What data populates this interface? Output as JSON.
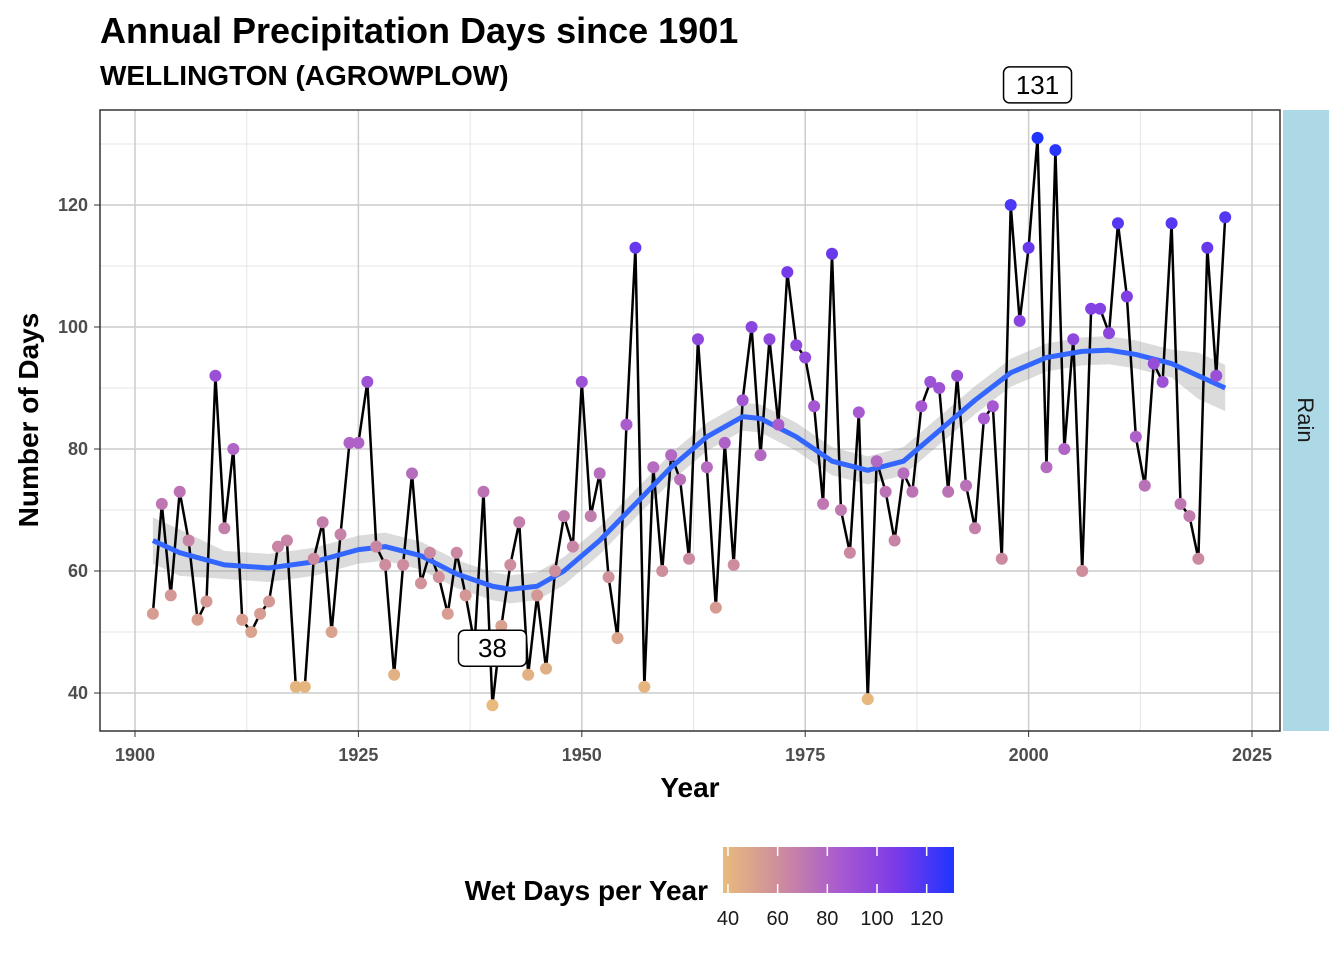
{
  "chart_data": {
    "type": "scatter",
    "title": "Annual Precipitation Days since 1901",
    "subtitle": "WELLINGTON (AGROWPLOW)",
    "xlabel": "Year",
    "ylabel": "Number of Days",
    "xlim": [
      1898,
      2028
    ],
    "ylim": [
      33.5,
      135
    ],
    "xticks": [
      1900,
      1925,
      1950,
      1975,
      2000,
      2025
    ],
    "yticks": [
      40,
      60,
      80,
      100,
      120
    ],
    "facet_label": "Rain",
    "grid": true,
    "legend": {
      "title": "Wet Days per Year",
      "position": "bottom",
      "ticks": [
        40,
        60,
        80,
        100,
        120
      ],
      "range": [
        38,
        131
      ],
      "colors": [
        "#e8bb7c",
        "#cd8c9e",
        "#a95bce",
        "#7b3ae8",
        "#1f35ff"
      ]
    },
    "annotations": [
      {
        "year": 1940,
        "label": "38"
      },
      {
        "year": 2001,
        "label": "131"
      }
    ],
    "x": [
      1902,
      1903,
      1904,
      1905,
      1906,
      1907,
      1908,
      1909,
      1910,
      1911,
      1912,
      1913,
      1914,
      1915,
      1916,
      1917,
      1918,
      1919,
      1920,
      1921,
      1922,
      1923,
      1924,
      1925,
      1926,
      1927,
      1928,
      1929,
      1930,
      1931,
      1932,
      1933,
      1934,
      1935,
      1936,
      1937,
      1938,
      1939,
      1940,
      1941,
      1942,
      1943,
      1944,
      1945,
      1946,
      1947,
      1948,
      1949,
      1950,
      1951,
      1952,
      1953,
      1954,
      1955,
      1956,
      1957,
      1958,
      1959,
      1960,
      1961,
      1962,
      1963,
      1964,
      1965,
      1966,
      1967,
      1968,
      1969,
      1970,
      1971,
      1972,
      1973,
      1974,
      1975,
      1976,
      1977,
      1978,
      1979,
      1980,
      1981,
      1982,
      1983,
      1984,
      1985,
      1986,
      1987,
      1988,
      1989,
      1990,
      1991,
      1992,
      1993,
      1994,
      1995,
      1996,
      1997,
      1998,
      1999,
      2000,
      2001,
      2002,
      2003,
      2004,
      2005,
      2006,
      2007,
      2008,
      2009,
      2010,
      2011,
      2012,
      2013,
      2014,
      2015,
      2016,
      2017,
      2018,
      2019,
      2020,
      2021,
      2022
    ],
    "values": [
      53,
      71,
      56,
      73,
      65,
      52,
      55,
      92,
      67,
      80,
      52,
      50,
      53,
      55,
      64,
      65,
      41,
      41,
      62,
      68,
      50,
      66,
      81,
      81,
      91,
      64,
      61,
      43,
      61,
      76,
      58,
      63,
      59,
      53,
      63,
      56,
      48,
      73,
      38,
      51,
      61,
      68,
      43,
      56,
      44,
      60,
      69,
      64,
      91,
      69,
      76,
      59,
      49,
      84,
      113,
      41,
      77,
      60,
      79,
      75,
      62,
      98,
      77,
      54,
      81,
      61,
      88,
      100,
      79,
      98,
      84,
      109,
      97,
      95,
      87,
      71,
      112,
      70,
      63,
      86,
      39,
      78,
      73,
      65,
      76,
      73,
      87,
      91,
      90,
      73,
      92,
      74,
      67,
      85,
      87,
      62,
      120,
      101,
      113,
      131,
      77,
      129,
      80,
      98,
      60,
      103,
      103,
      99,
      117,
      105,
      82,
      74,
      94,
      91,
      117,
      71,
      69,
      62,
      113,
      92,
      118
    ],
    "smooth": {
      "x": [
        1902,
        1905,
        1910,
        1915,
        1920,
        1925,
        1928,
        1932,
        1936,
        1940,
        1942,
        1945,
        1948,
        1952,
        1956,
        1960,
        1964,
        1968,
        1970,
        1974,
        1978,
        1982,
        1986,
        1990,
        1994,
        1998,
        2002,
        2006,
        2009,
        2012,
        2016,
        2019,
        2022
      ],
      "y": [
        65,
        63,
        61,
        60.5,
        61.5,
        63.5,
        64,
        62.5,
        59.5,
        57.5,
        57,
        57.5,
        60,
        65,
        71,
        77,
        82,
        85.3,
        85,
        82,
        78,
        76.5,
        78,
        83,
        88,
        92.5,
        95,
        96,
        96.2,
        95.5,
        94,
        92,
        90
      ]
    }
  }
}
